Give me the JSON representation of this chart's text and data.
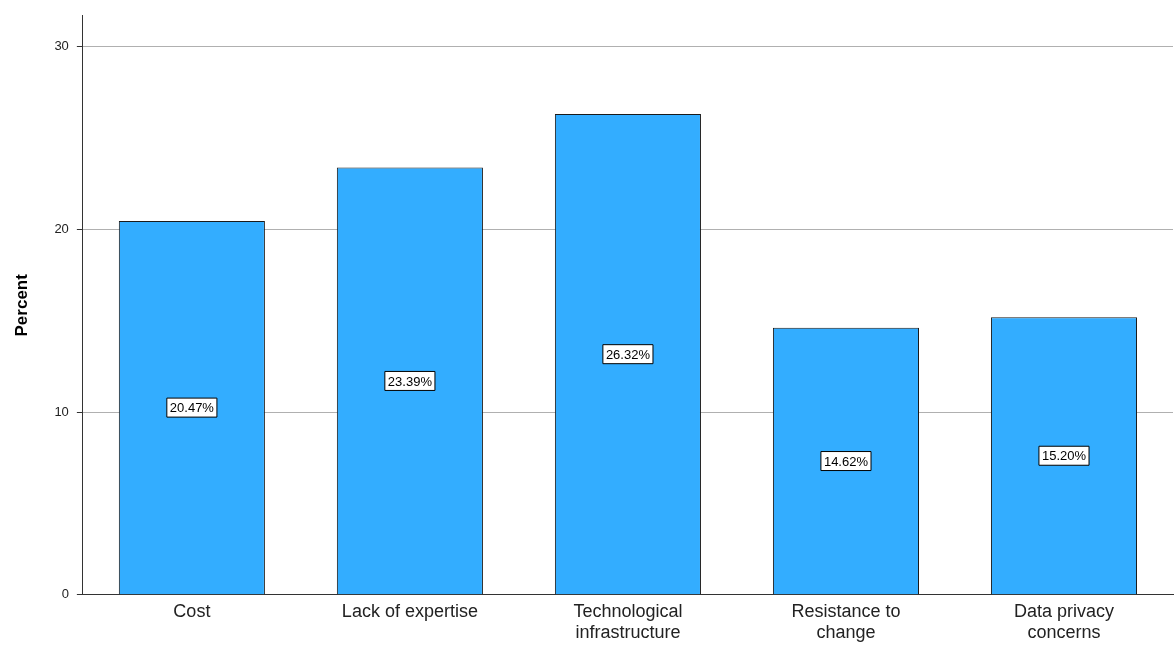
{
  "chart_data": {
    "type": "bar",
    "ylabel": "Percent",
    "categories": [
      "Cost",
      "Lack of expertise",
      "Technological infrastructure",
      "Resistance to change",
      "Data privacy concerns"
    ],
    "values": [
      20.47,
      23.39,
      26.32,
      14.62,
      15.2
    ],
    "value_labels": [
      "20.47%",
      "23.39%",
      "26.32%",
      "14.62%",
      "15.20%"
    ],
    "color": "#33adff",
    "ylim": [
      0,
      31.7
    ],
    "yticks": [
      0,
      10,
      20,
      30
    ],
    "grid": "y",
    "legend": false
  }
}
